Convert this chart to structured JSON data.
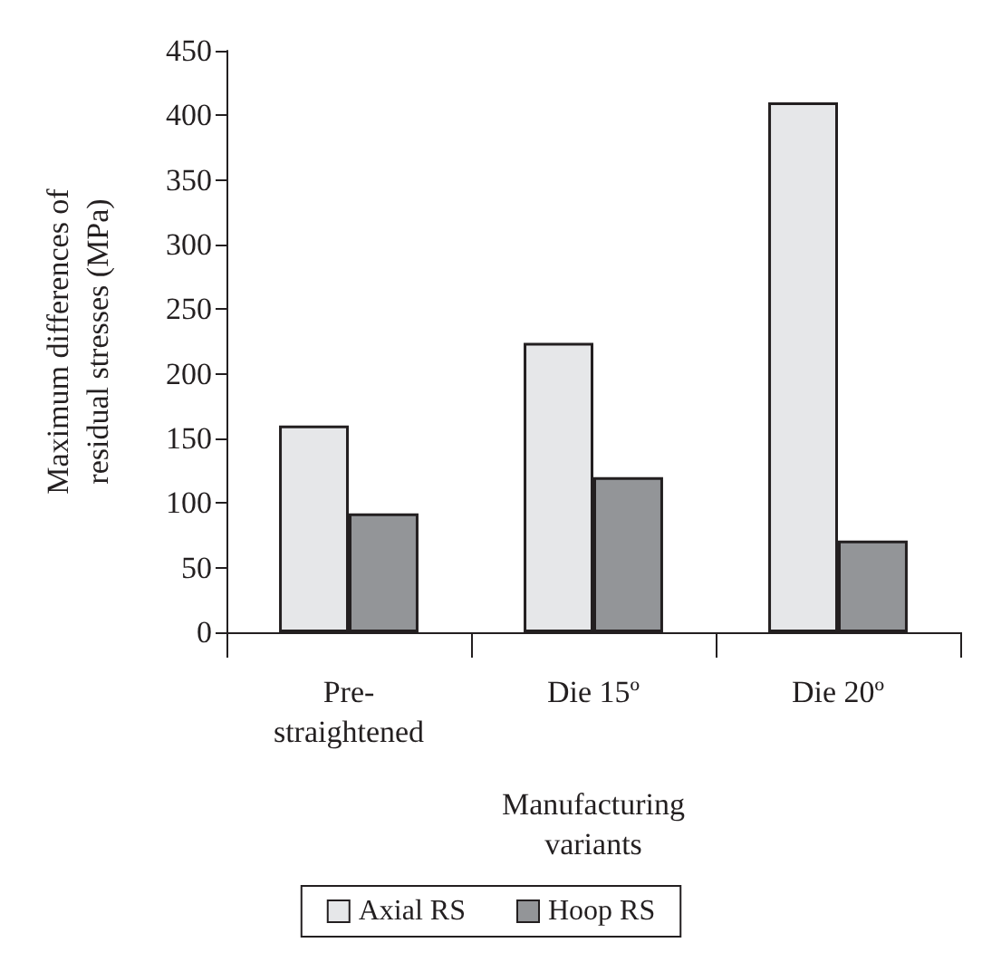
{
  "chart_data": {
    "type": "bar",
    "categories": [
      "Pre-\nstraightened",
      "Die 15º",
      "Die 20º"
    ],
    "series": [
      {
        "name": "Axial RS",
        "color": "#e6e7e9",
        "values": [
          160,
          224,
          410
        ]
      },
      {
        "name": "Hoop RS",
        "color": "#939598",
        "values": [
          92,
          120,
          71
        ]
      }
    ],
    "xlabel": "Manufacturing\nvariants",
    "ylabel": "Maximum differences of\nresidual stresses (MPa)",
    "ylim": [
      0,
      450
    ],
    "yticks": [
      0,
      50,
      100,
      150,
      200,
      250,
      300,
      350,
      400,
      450
    ],
    "grid": false,
    "legend": "bottom"
  }
}
